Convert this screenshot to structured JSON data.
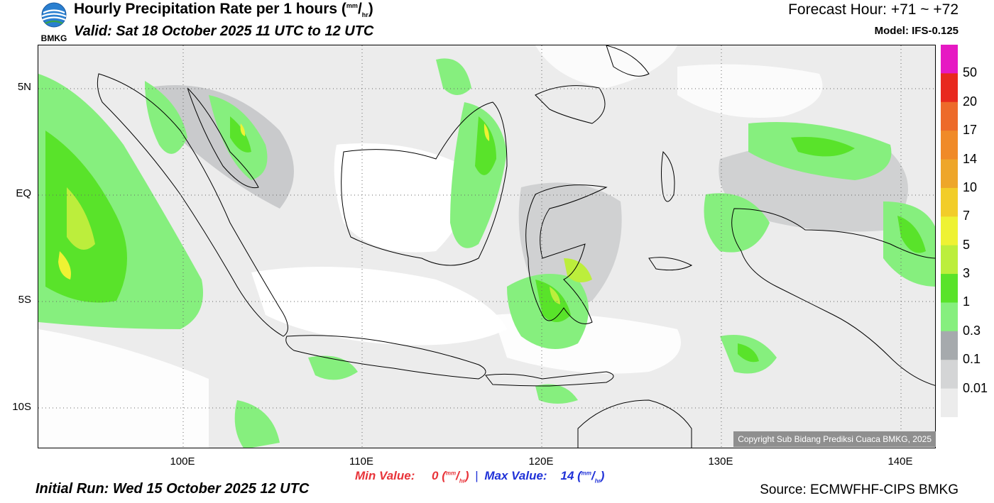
{
  "header": {
    "title": "Hourly Precipitation Rate per 1 hours",
    "title_unit_num": "mm",
    "title_unit_den": "hr",
    "valid": "Valid: Sat 18 October 2025 11 UTC to 12 UTC",
    "forecast_hour": "Forecast Hour: +71 ~ +72",
    "model": "Model: IFS-0.125",
    "logo_text": "BMKG"
  },
  "map": {
    "lat_labels": [
      "5N",
      "EQ",
      "5S",
      "10S"
    ],
    "lon_labels": [
      "100E",
      "110E",
      "120E",
      "130E",
      "140E"
    ],
    "copyright": "Copyright Sub Bidang Prediksi Cuaca BMKG, 2025"
  },
  "colorbar": {
    "labels": [
      "50",
      "20",
      "17",
      "14",
      "10",
      "7",
      "5",
      "3",
      "1",
      "0.3",
      "0.1",
      "0.01"
    ],
    "colors": [
      "#e619c3",
      "#e8291e",
      "#ed6a2a",
      "#f08a28",
      "#eea62a",
      "#f2cd29",
      "#eef233",
      "#bcee3c",
      "#59e32a",
      "#86ef7e",
      "#a6aaad",
      "#d4d5d6",
      "#ececec"
    ]
  },
  "footer": {
    "min_label": "Min Value:",
    "min_value": "0",
    "max_label": "Max Value:",
    "max_value": "14",
    "unit_num": "mm",
    "unit_den": "hr",
    "separator": "|",
    "initial_run": "Initial Run: Wed 15 October 2025 12 UTC",
    "source": "Source: ECMWFHF-CIPS BMKG"
  }
}
